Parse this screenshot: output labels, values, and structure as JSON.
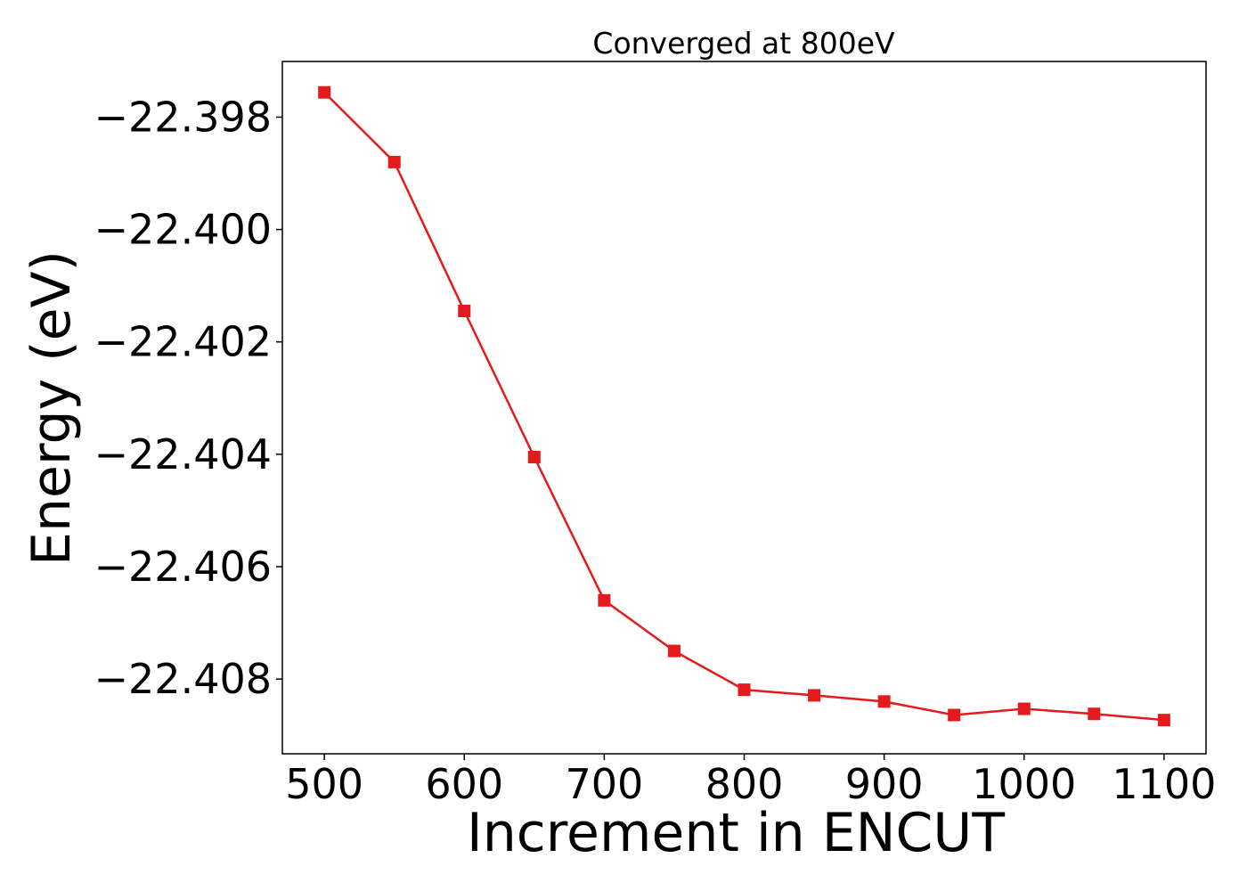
{
  "chart_data": {
    "type": "line",
    "title": "Converged at 800eV",
    "xlabel": "Increment in ENCUT",
    "ylabel": "Energy (eV)",
    "x_ticks": [
      500,
      600,
      700,
      800,
      900,
      1000,
      1100
    ],
    "x_tick_labels": [
      "500",
      "600",
      "700",
      "800",
      "900",
      "1000",
      "1100"
    ],
    "y_ticks": [
      -22.398,
      -22.4,
      -22.402,
      -22.404,
      -22.406,
      -22.408
    ],
    "y_tick_labels": [
      "−22.398",
      "−22.400",
      "−22.402",
      "−22.404",
      "−22.406",
      "−22.408"
    ],
    "xlim": [
      470,
      1130
    ],
    "ylim": [
      -22.40933,
      -22.39701
    ],
    "grid": false,
    "series": [
      {
        "color": "#e41a1c",
        "marker": "square",
        "x": [
          500,
          550,
          600,
          650,
          700,
          750,
          800,
          850,
          900,
          950,
          1000,
          1050,
          1100
        ],
        "y": [
          -22.39756,
          -22.3988,
          -22.40145,
          -22.40405,
          -22.4066,
          -22.4075,
          -22.40819,
          -22.40829,
          -22.4084,
          -22.40864,
          -22.40853,
          -22.40862,
          -22.40873
        ]
      }
    ]
  }
}
